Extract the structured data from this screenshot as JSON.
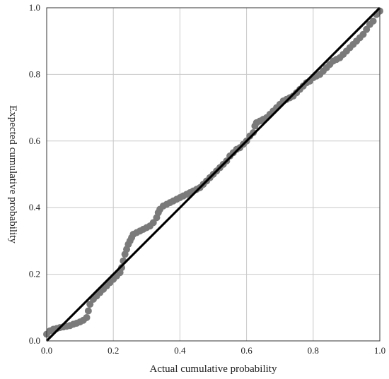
{
  "chart_data": {
    "type": "scatter",
    "xlabel": "Actual cumulative probability",
    "ylabel": "Expected cumulative probability",
    "xlim": [
      0,
      1
    ],
    "ylim": [
      0,
      1
    ],
    "x_ticks": [
      "0.0",
      "0.2",
      "0.4",
      "0.6",
      "0.8",
      "1.0"
    ],
    "y_ticks": [
      "0.0",
      "0.2",
      "0.4",
      "0.6",
      "0.8",
      "1.0"
    ],
    "grid": true,
    "reference_line": [
      [
        0,
        0
      ],
      [
        1,
        1
      ]
    ],
    "colors": {
      "points": "#7a7a7a",
      "reference_line": "#000000",
      "grid": "#c8c8c8"
    },
    "series": [
      {
        "points": [
          [
            0.0,
            0.02
          ],
          [
            0.01,
            0.03
          ],
          [
            0.02,
            0.035
          ],
          [
            0.03,
            0.037
          ],
          [
            0.04,
            0.04
          ],
          [
            0.05,
            0.042
          ],
          [
            0.06,
            0.044
          ],
          [
            0.07,
            0.046
          ],
          [
            0.08,
            0.05
          ],
          [
            0.09,
            0.053
          ],
          [
            0.1,
            0.057
          ],
          [
            0.11,
            0.062
          ],
          [
            0.12,
            0.07
          ],
          [
            0.125,
            0.09
          ],
          [
            0.13,
            0.11
          ],
          [
            0.14,
            0.125
          ],
          [
            0.15,
            0.135
          ],
          [
            0.16,
            0.145
          ],
          [
            0.17,
            0.155
          ],
          [
            0.18,
            0.165
          ],
          [
            0.19,
            0.175
          ],
          [
            0.2,
            0.185
          ],
          [
            0.21,
            0.195
          ],
          [
            0.22,
            0.205
          ],
          [
            0.225,
            0.22
          ],
          [
            0.23,
            0.24
          ],
          [
            0.235,
            0.26
          ],
          [
            0.24,
            0.275
          ],
          [
            0.245,
            0.29
          ],
          [
            0.25,
            0.3
          ],
          [
            0.255,
            0.31
          ],
          [
            0.26,
            0.32
          ],
          [
            0.27,
            0.325
          ],
          [
            0.28,
            0.33
          ],
          [
            0.29,
            0.335
          ],
          [
            0.3,
            0.34
          ],
          [
            0.31,
            0.345
          ],
          [
            0.32,
            0.355
          ],
          [
            0.33,
            0.37
          ],
          [
            0.335,
            0.385
          ],
          [
            0.34,
            0.395
          ],
          [
            0.35,
            0.405
          ],
          [
            0.36,
            0.41
          ],
          [
            0.37,
            0.415
          ],
          [
            0.38,
            0.42
          ],
          [
            0.39,
            0.425
          ],
          [
            0.4,
            0.43
          ],
          [
            0.41,
            0.435
          ],
          [
            0.42,
            0.44
          ],
          [
            0.43,
            0.445
          ],
          [
            0.44,
            0.45
          ],
          [
            0.45,
            0.455
          ],
          [
            0.46,
            0.46
          ],
          [
            0.47,
            0.47
          ],
          [
            0.48,
            0.48
          ],
          [
            0.49,
            0.49
          ],
          [
            0.5,
            0.5
          ],
          [
            0.51,
            0.51
          ],
          [
            0.52,
            0.52
          ],
          [
            0.53,
            0.53
          ],
          [
            0.54,
            0.54
          ],
          [
            0.55,
            0.555
          ],
          [
            0.56,
            0.565
          ],
          [
            0.57,
            0.575
          ],
          [
            0.58,
            0.58
          ],
          [
            0.59,
            0.59
          ],
          [
            0.6,
            0.6
          ],
          [
            0.61,
            0.615
          ],
          [
            0.62,
            0.625
          ],
          [
            0.625,
            0.645
          ],
          [
            0.63,
            0.655
          ],
          [
            0.64,
            0.66
          ],
          [
            0.65,
            0.665
          ],
          [
            0.66,
            0.67
          ],
          [
            0.67,
            0.68
          ],
          [
            0.68,
            0.69
          ],
          [
            0.69,
            0.7
          ],
          [
            0.7,
            0.71
          ],
          [
            0.71,
            0.72
          ],
          [
            0.72,
            0.725
          ],
          [
            0.73,
            0.73
          ],
          [
            0.74,
            0.735
          ],
          [
            0.75,
            0.745
          ],
          [
            0.76,
            0.755
          ],
          [
            0.77,
            0.765
          ],
          [
            0.78,
            0.775
          ],
          [
            0.79,
            0.78
          ],
          [
            0.8,
            0.79
          ],
          [
            0.81,
            0.795
          ],
          [
            0.82,
            0.8
          ],
          [
            0.83,
            0.81
          ],
          [
            0.84,
            0.82
          ],
          [
            0.85,
            0.83
          ],
          [
            0.86,
            0.84
          ],
          [
            0.87,
            0.845
          ],
          [
            0.88,
            0.85
          ],
          [
            0.89,
            0.86
          ],
          [
            0.9,
            0.87
          ],
          [
            0.91,
            0.88
          ],
          [
            0.92,
            0.89
          ],
          [
            0.93,
            0.9
          ],
          [
            0.94,
            0.91
          ],
          [
            0.95,
            0.92
          ],
          [
            0.96,
            0.935
          ],
          [
            0.97,
            0.95
          ],
          [
            0.98,
            0.96
          ],
          [
            0.99,
            0.98
          ],
          [
            1.0,
            0.99
          ]
        ]
      }
    ]
  }
}
